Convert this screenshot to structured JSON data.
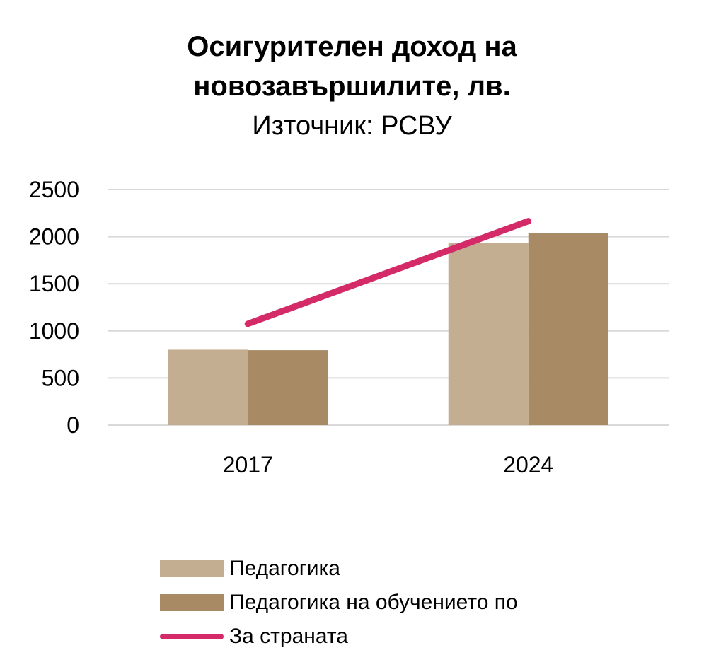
{
  "chart_data": {
    "type": "bar",
    "title_lines": [
      "Осигурителен доход на",
      "новозавършилите, лв."
    ],
    "subtitle": "Източник: РСВУ",
    "categories": [
      "2017",
      "2024"
    ],
    "yticks": [
      "0",
      "500",
      "1000",
      "1500",
      "2000",
      "2500"
    ],
    "ylim": [
      0,
      2500
    ],
    "grid": true,
    "legend_position": "bottom",
    "series": [
      {
        "name": "Педагогика",
        "kind": "bar",
        "color": "#c4ae92",
        "values": [
          800,
          1935
        ]
      },
      {
        "name": "Педагогика на обучението по",
        "kind": "bar",
        "color": "#a88b64",
        "values": [
          795,
          2040
        ]
      },
      {
        "name": "За страната",
        "kind": "line",
        "color": "#d42a68",
        "values": [
          1075,
          2165
        ]
      }
    ]
  }
}
